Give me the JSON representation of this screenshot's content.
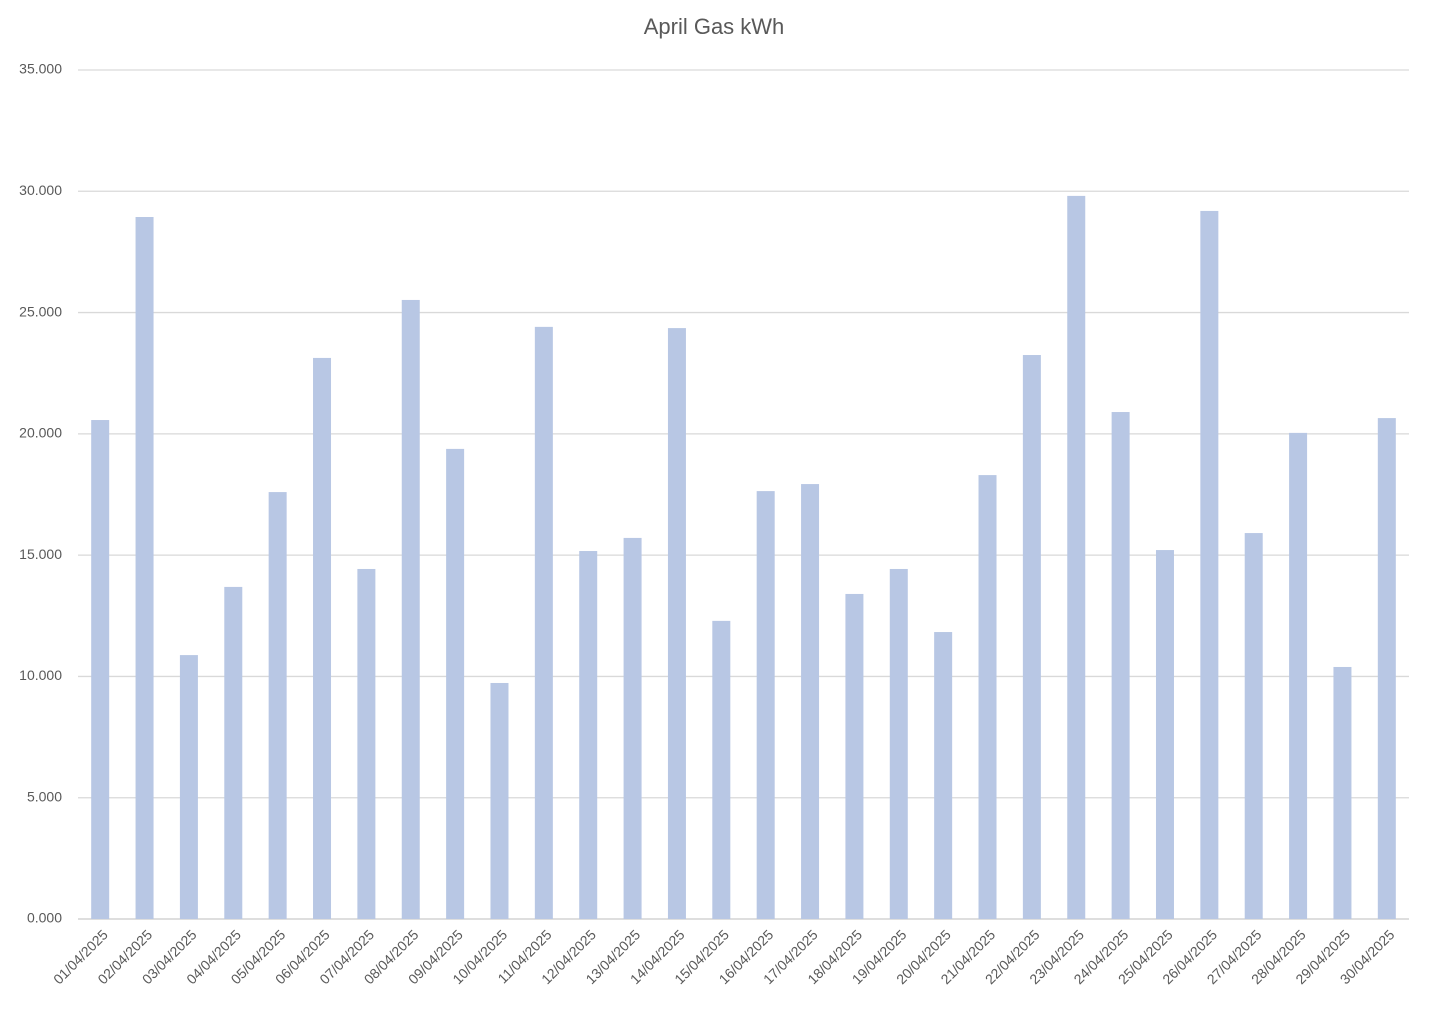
{
  "chart_data": {
    "type": "bar",
    "title": "April Gas kWh",
    "categories": [
      "01/04/2025",
      "02/04/2025",
      "03/04/2025",
      "04/04/2025",
      "05/04/2025",
      "06/04/2025",
      "07/04/2025",
      "08/04/2025",
      "09/04/2025",
      "10/04/2025",
      "11/04/2025",
      "12/04/2025",
      "13/04/2025",
      "14/04/2025",
      "15/04/2025",
      "16/04/2025",
      "17/04/2025",
      "18/04/2025",
      "19/04/2025",
      "20/04/2025",
      "21/04/2025",
      "22/04/2025",
      "23/04/2025",
      "24/04/2025",
      "25/04/2025",
      "26/04/2025",
      "27/04/2025",
      "28/04/2025",
      "29/04/2025",
      "30/04/2025"
    ],
    "values": [
      20.57,
      28.94,
      10.88,
      13.69,
      17.6,
      23.13,
      14.43,
      25.52,
      19.38,
      9.73,
      24.41,
      15.17,
      15.71,
      24.36,
      12.29,
      17.64,
      17.93,
      13.4,
      14.43,
      11.83,
      18.3,
      23.25,
      29.81,
      20.9,
      15.21,
      29.19,
      15.91,
      20.04,
      10.39,
      20.65
    ],
    "color": "#b8c7e4",
    "ylim": [
      0,
      35
    ],
    "yticks": [
      {
        "value": 0,
        "label": "0.000"
      },
      {
        "value": 5,
        "label": "5.000"
      },
      {
        "value": 10,
        "label": "10.000"
      },
      {
        "value": 15,
        "label": "15.000"
      },
      {
        "value": 20,
        "label": "20.000"
      },
      {
        "value": 25,
        "label": "25.000"
      },
      {
        "value": 30,
        "label": "30.000"
      },
      {
        "value": 35,
        "label": "35.000"
      }
    ],
    "grid": true
  }
}
